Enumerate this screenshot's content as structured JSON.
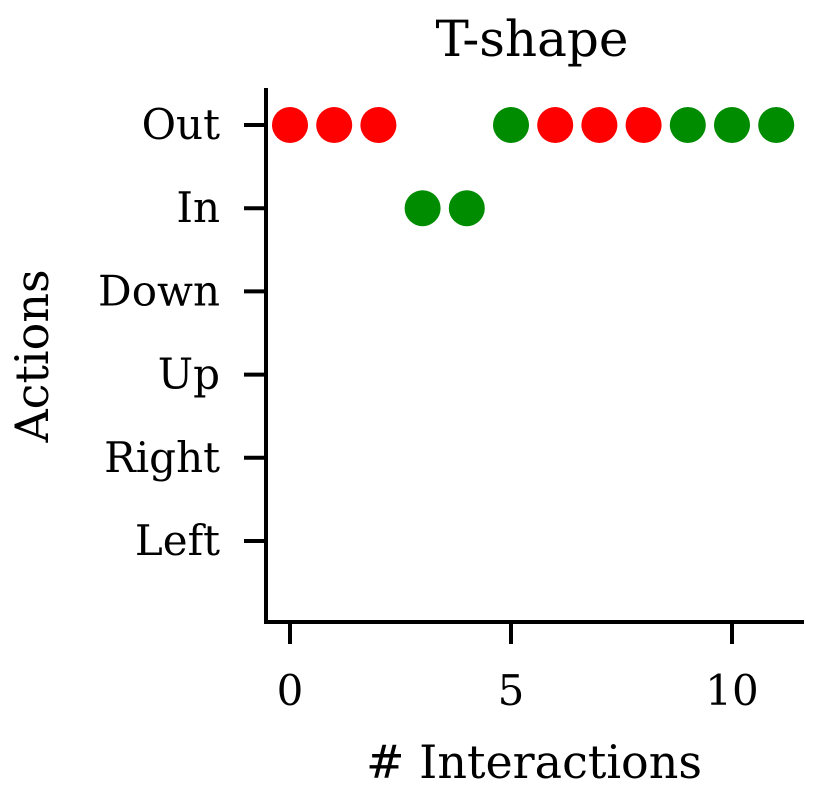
{
  "chart_data": {
    "type": "scatter",
    "title": "T-shape",
    "xlabel": "# Interactions",
    "ylabel": "Actions",
    "xlim": [
      -0.6,
      11.6
    ],
    "xticks": [
      0,
      5,
      10
    ],
    "xtick_labels": [
      "0",
      "5",
      "10"
    ],
    "categories": [
      "Left",
      "Right",
      "Up",
      "Down",
      "In",
      "Out"
    ],
    "grid": false,
    "colors": {
      "red": "#ff0000",
      "green": "#008c00"
    },
    "points": [
      {
        "x": 0,
        "action": "Out",
        "color": "red"
      },
      {
        "x": 1,
        "action": "Out",
        "color": "red"
      },
      {
        "x": 2,
        "action": "Out",
        "color": "red"
      },
      {
        "x": 3,
        "action": "In",
        "color": "green"
      },
      {
        "x": 4,
        "action": "In",
        "color": "green"
      },
      {
        "x": 5,
        "action": "Out",
        "color": "green"
      },
      {
        "x": 6,
        "action": "Out",
        "color": "red"
      },
      {
        "x": 7,
        "action": "Out",
        "color": "red"
      },
      {
        "x": 8,
        "action": "Out",
        "color": "red"
      },
      {
        "x": 9,
        "action": "Out",
        "color": "green"
      },
      {
        "x": 10,
        "action": "Out",
        "color": "green"
      },
      {
        "x": 11,
        "action": "Out",
        "color": "green"
      }
    ]
  }
}
